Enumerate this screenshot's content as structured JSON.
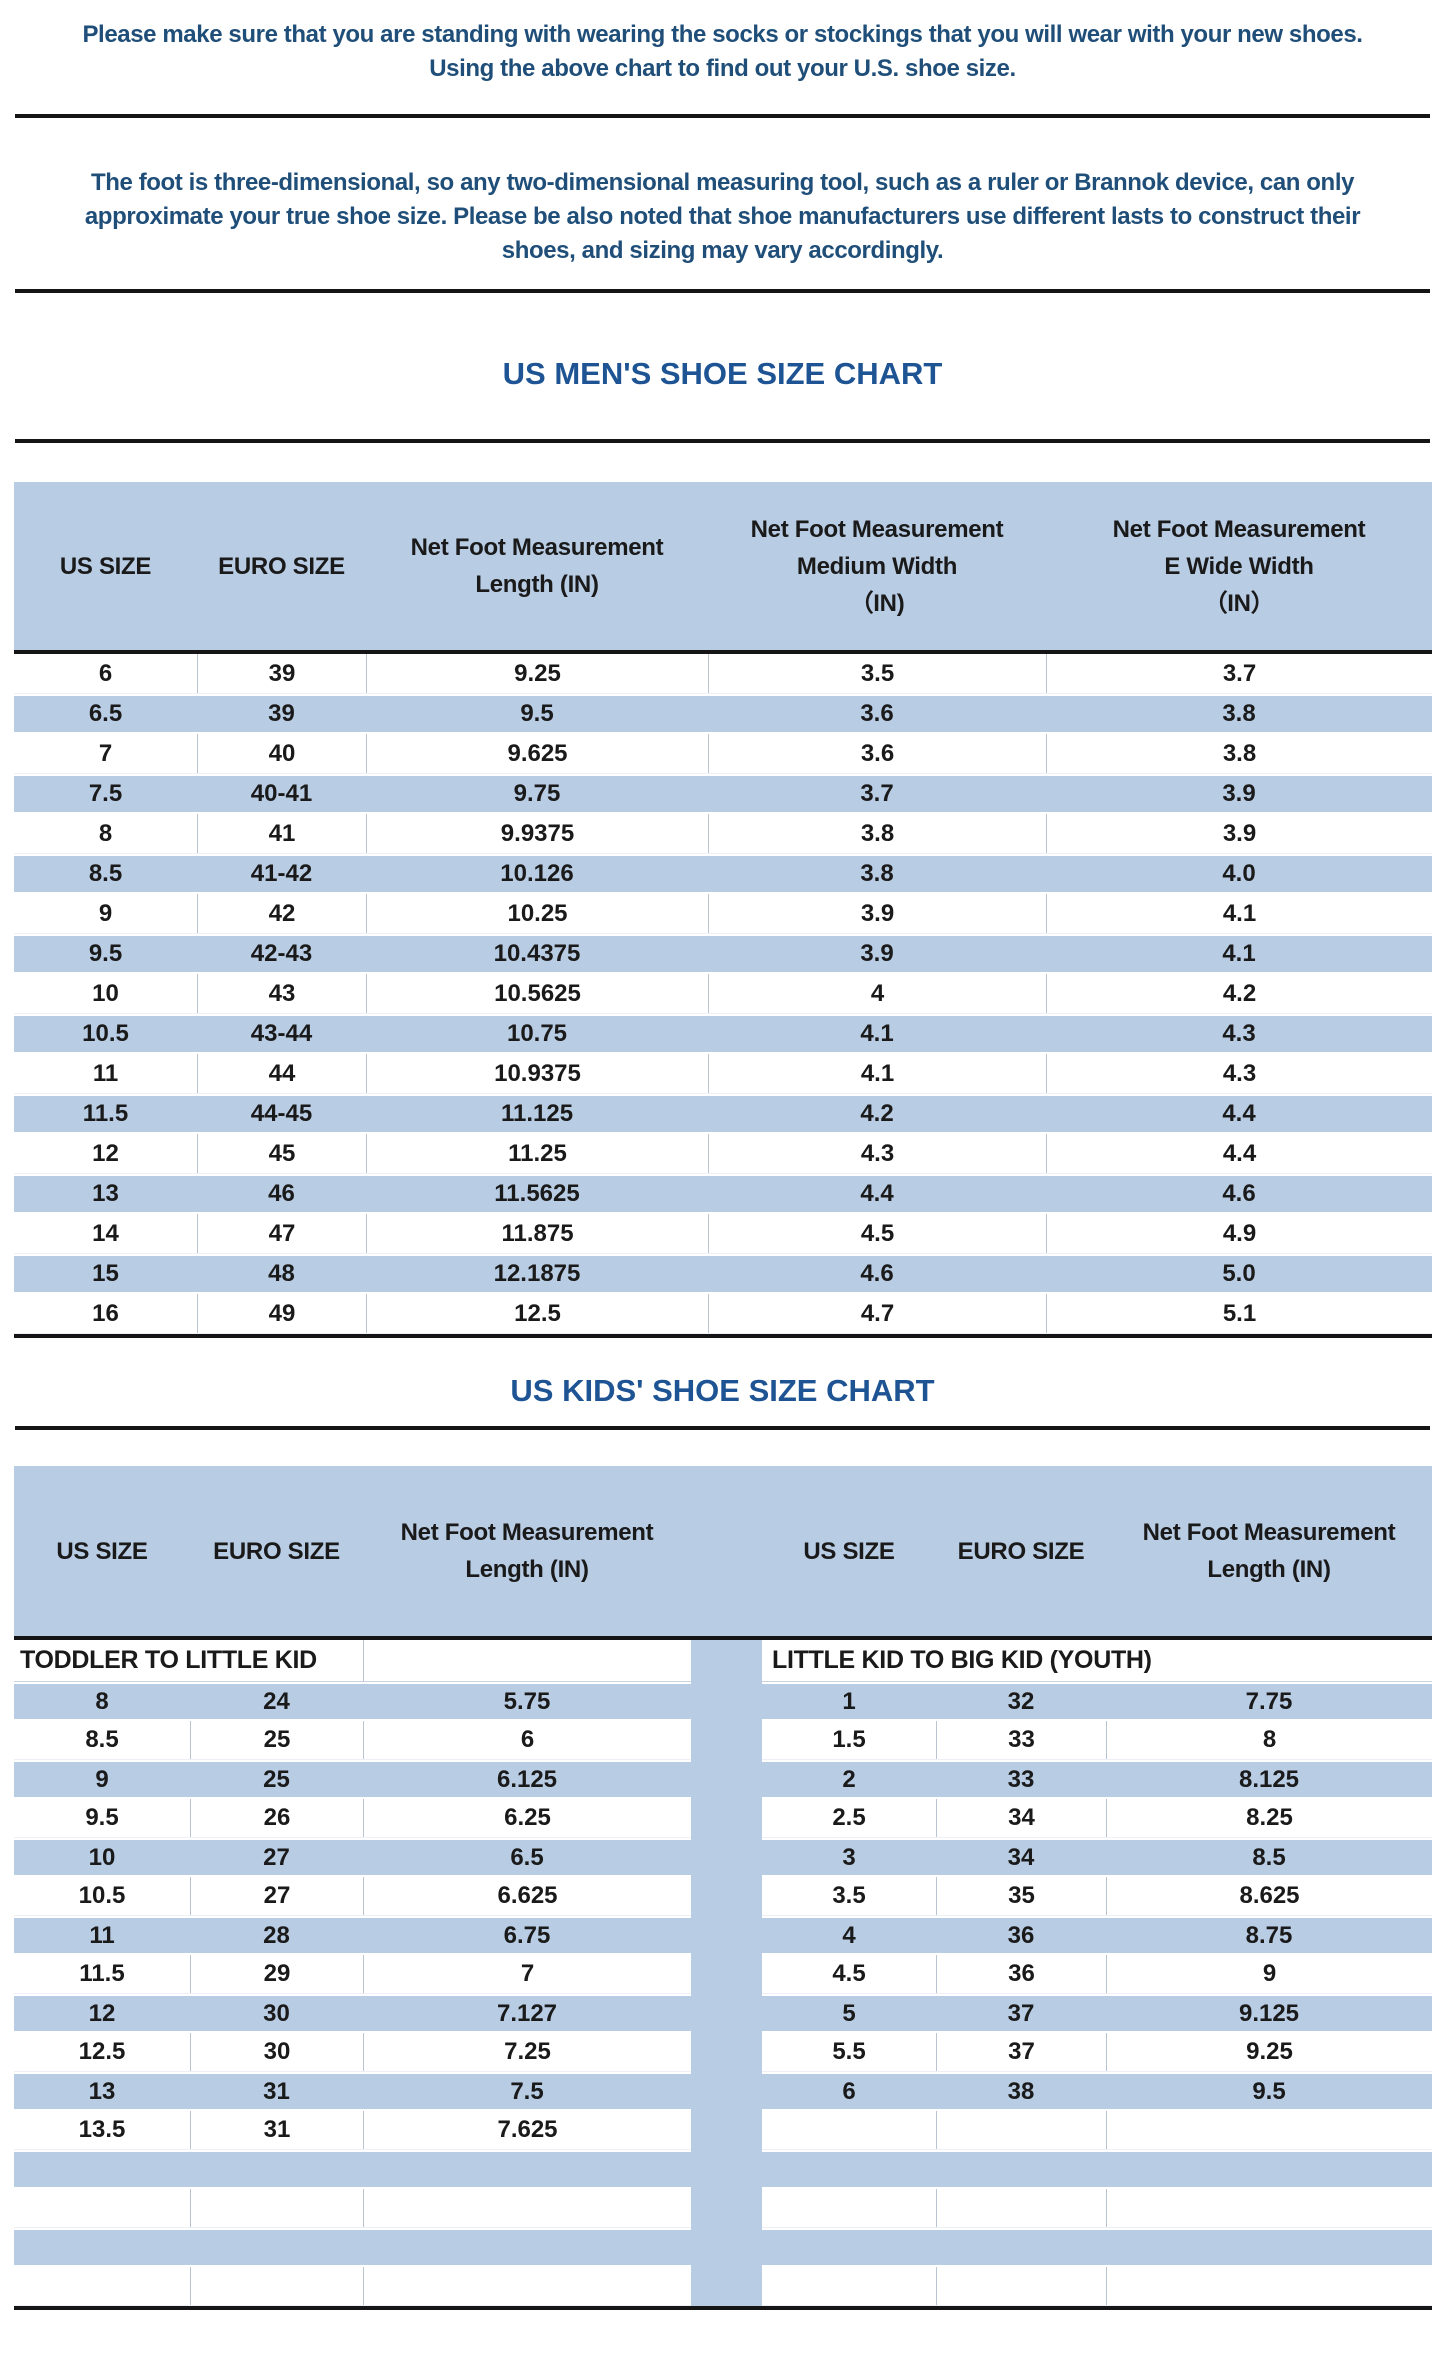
{
  "colors": {
    "stripe_blue": "#B8CCE4",
    "header_blue": "#B8CCE4",
    "title_blue": "#1E5493",
    "paragraph_blue": "#1F4E79",
    "text_dark": "#1A1A1A",
    "rule_dark": "#151515",
    "cell_border": "#B9C4D1"
  },
  "intro": {
    "lines": [
      "Please make sure that you are standing with wearing the socks or stockings that you will wear with your new shoes.",
      "Using the above chart to find out your U.S. shoe size."
    ]
  },
  "note": {
    "lines": [
      "The foot is three-dimensional, so any two-dimensional measuring tool, such as a ruler or Brannok device, can only",
      "approximate your true shoe size. Please be also noted that shoe manufacturers use different lasts to construct their",
      "shoes, and sizing may vary accordingly."
    ]
  },
  "mens_chart": {
    "title": "US MEN'S SHOE SIZE CHART",
    "columns": [
      {
        "lines": [
          "US SIZE"
        ]
      },
      {
        "lines": [
          "EURO SIZE"
        ]
      },
      {
        "lines": [
          "Net Foot Measurement",
          "Length (IN)"
        ]
      },
      {
        "lines": [
          "Net Foot Measurement",
          "Medium Width",
          "（IN)"
        ]
      },
      {
        "lines": [
          "Net Foot Measurement",
          "E Wide Width",
          "（IN）"
        ]
      }
    ],
    "rows": [
      [
        "6",
        "39",
        "9.25",
        "3.5",
        "3.7"
      ],
      [
        "6.5",
        "39",
        "9.5",
        "3.6",
        "3.8"
      ],
      [
        "7",
        "40",
        "9.625",
        "3.6",
        "3.8"
      ],
      [
        "7.5",
        "40-41",
        "9.75",
        "3.7",
        "3.9"
      ],
      [
        "8",
        "41",
        "9.9375",
        "3.8",
        "3.9"
      ],
      [
        "8.5",
        "41-42",
        "10.126",
        "3.8",
        "4.0"
      ],
      [
        "9",
        "42",
        "10.25",
        "3.9",
        "4.1"
      ],
      [
        "9.5",
        "42-43",
        "10.4375",
        "3.9",
        "4.1"
      ],
      [
        "10",
        "43",
        "10.5625",
        "4",
        "4.2"
      ],
      [
        "10.5",
        "43-44",
        "10.75",
        "4.1",
        "4.3"
      ],
      [
        "11",
        "44",
        "10.9375",
        "4.1",
        "4.3"
      ],
      [
        "11.5",
        "44-45",
        "11.125",
        "4.2",
        "4.4"
      ],
      [
        "12",
        "45",
        "11.25",
        "4.3",
        "4.4"
      ],
      [
        "13",
        "46",
        "11.5625",
        "4.4",
        "4.6"
      ],
      [
        "14",
        "47",
        "11.875",
        "4.5",
        "4.9"
      ],
      [
        "15",
        "48",
        "12.1875",
        "4.6",
        "5.0"
      ],
      [
        "16",
        "49",
        "12.5",
        "4.7",
        "5.1"
      ]
    ]
  },
  "kids_chart": {
    "title": "US KIDS' SHOE SIZE CHART",
    "columns": [
      {
        "lines": [
          "US SIZE"
        ]
      },
      {
        "lines": [
          "EURO SIZE"
        ]
      },
      {
        "lines": [
          "Net Foot Measurement",
          "Length (IN)"
        ]
      },
      {
        "lines": [
          "US SIZE"
        ]
      },
      {
        "lines": [
          "EURO SIZE"
        ]
      },
      {
        "lines": [
          "Net Foot Measurement",
          "Length (IN)"
        ]
      }
    ],
    "left_section_label": "TODDLER TO LITTLE KID",
    "right_section_label": "LITTLE KID TO BIG KID (YOUTH)",
    "left_rows": [
      [
        "8",
        "24",
        "5.75"
      ],
      [
        "8.5",
        "25",
        "6"
      ],
      [
        "9",
        "25",
        "6.125"
      ],
      [
        "9.5",
        "26",
        "6.25"
      ],
      [
        "10",
        "27",
        "6.5"
      ],
      [
        "10.5",
        "27",
        "6.625"
      ],
      [
        "11",
        "28",
        "6.75"
      ],
      [
        "11.5",
        "29",
        "7"
      ],
      [
        "12",
        "30",
        "7.127"
      ],
      [
        "12.5",
        "30",
        "7.25"
      ],
      [
        "13",
        "31",
        "7.5"
      ],
      [
        "13.5",
        "31",
        "7.625"
      ],
      [
        "",
        "",
        ""
      ],
      [
        "",
        "",
        ""
      ],
      [
        "",
        "",
        ""
      ],
      [
        "",
        "",
        ""
      ]
    ],
    "right_rows": [
      [
        "1",
        "32",
        "7.75"
      ],
      [
        "1.5",
        "33",
        "8"
      ],
      [
        "2",
        "33",
        "8.125"
      ],
      [
        "2.5",
        "34",
        "8.25"
      ],
      [
        "3",
        "34",
        "8.5"
      ],
      [
        "3.5",
        "35",
        "8.625"
      ],
      [
        "4",
        "36",
        "8.75"
      ],
      [
        "4.5",
        "36",
        "9"
      ],
      [
        "5",
        "37",
        "9.125"
      ],
      [
        "5.5",
        "37",
        "9.25"
      ],
      [
        "6",
        "38",
        "9.5"
      ],
      [
        "",
        "",
        ""
      ],
      [
        "",
        "",
        ""
      ],
      [
        "",
        "",
        ""
      ],
      [
        "",
        "",
        ""
      ],
      [
        "",
        "",
        ""
      ]
    ]
  }
}
